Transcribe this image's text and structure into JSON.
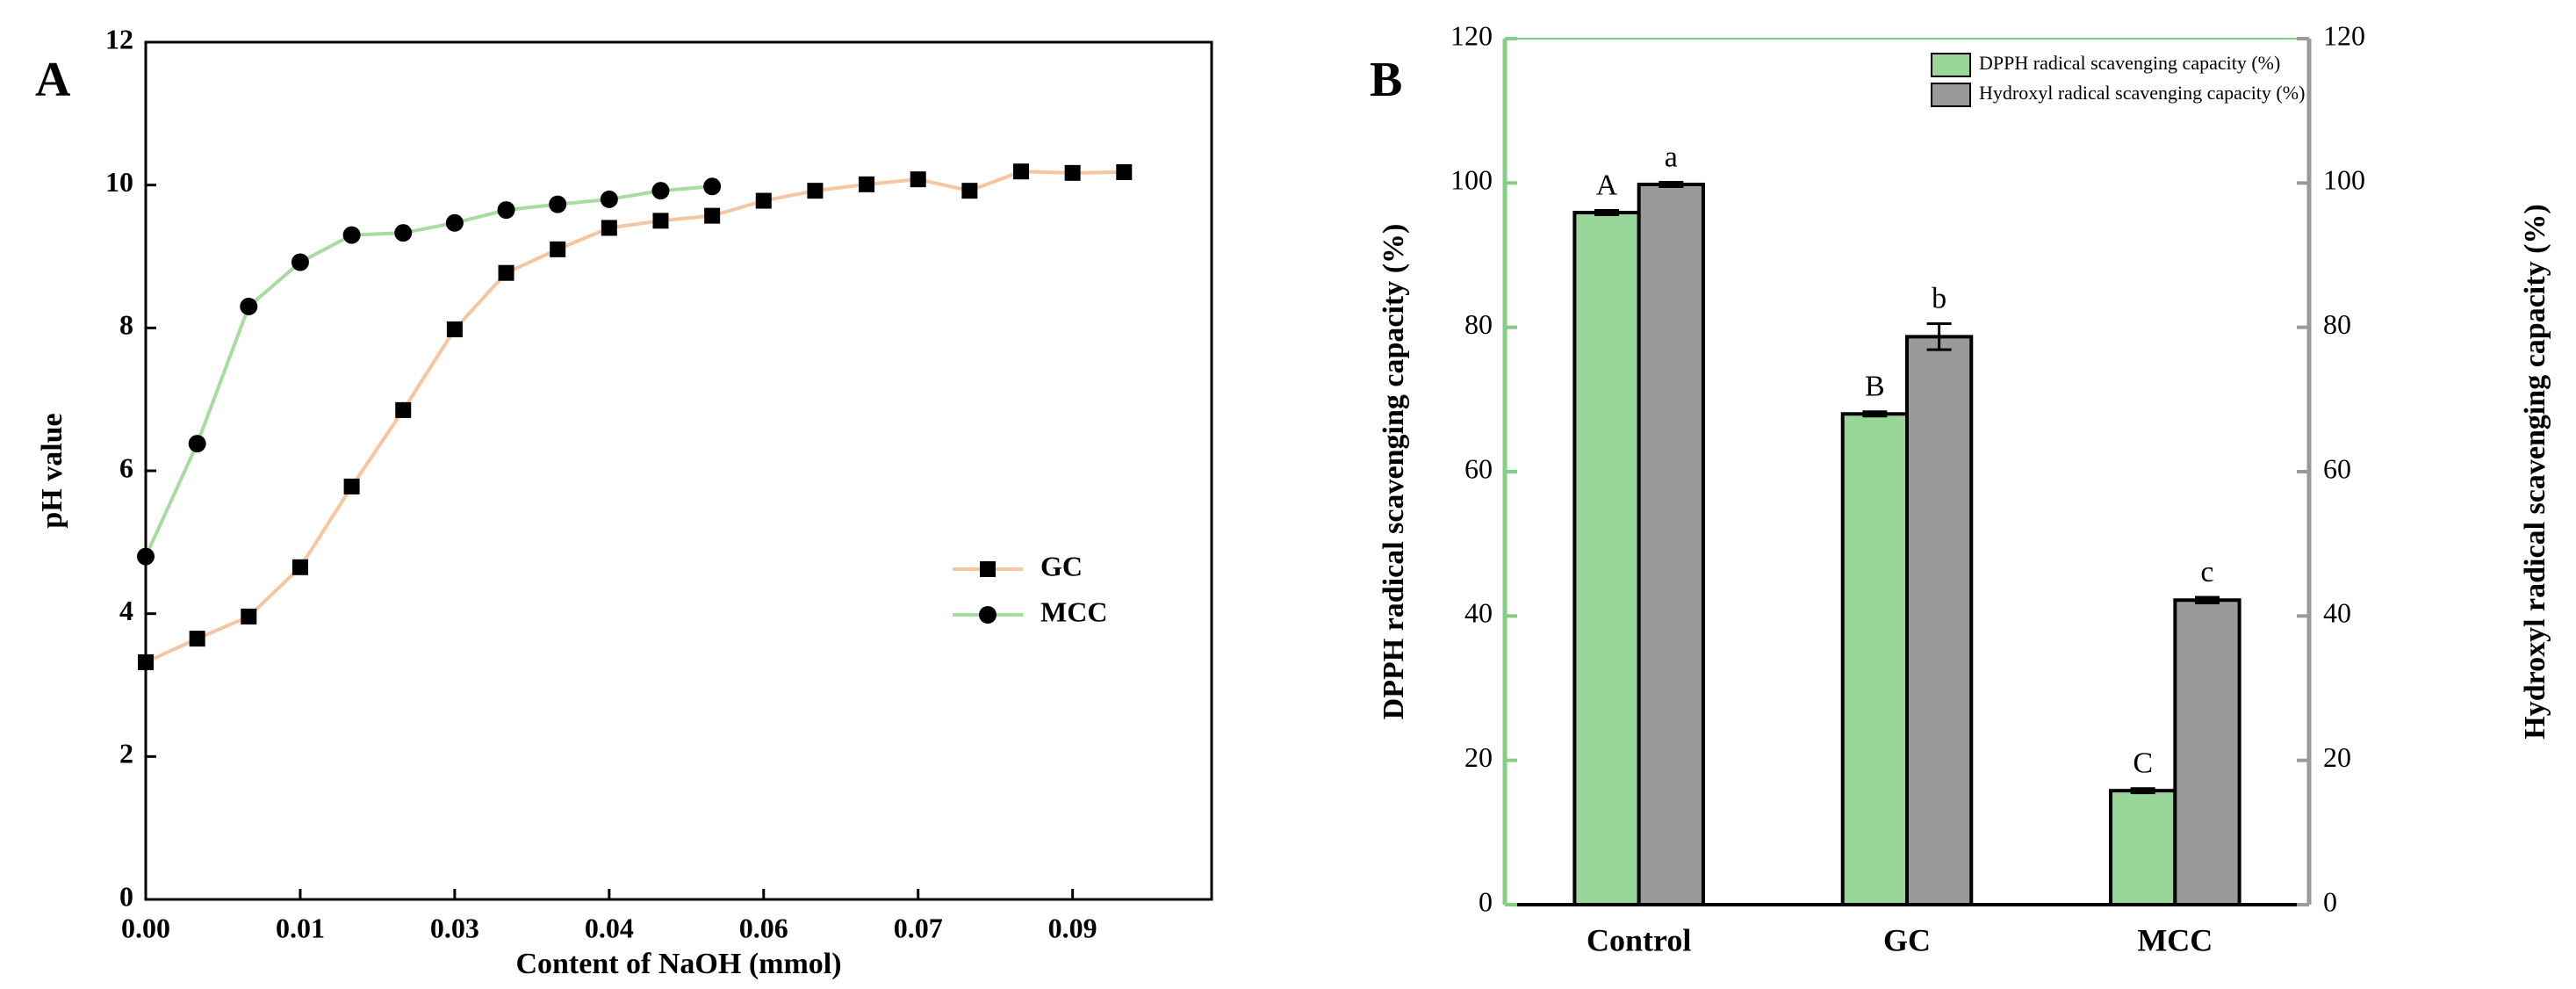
{
  "chart_data": [
    {
      "type": "line",
      "panel_label": "A",
      "xlabel": "Content of NaOH (mmol)",
      "ylabel": "pH value",
      "xlim": [
        0,
        0.1035
      ],
      "xticks": [
        {
          "value": 0,
          "label": "0.00"
        },
        {
          "value": 0.015,
          "label": "0.01"
        },
        0.03,
        {
          "value": 0.045,
          "label": "0.04"
        },
        0.06,
        {
          "value": 0.075,
          "label": "0.07"
        },
        0.09
      ],
      "ylim": [
        0,
        12
      ],
      "yticks": [
        0,
        2,
        4,
        6,
        8,
        10,
        12
      ],
      "legend": "right",
      "series": [
        {
          "name": "GC",
          "color": "#f7c59f",
          "marker": "square",
          "x": [
            0,
            0.005,
            0.01,
            0.015,
            0.02,
            0.025,
            0.03,
            0.035,
            0.04,
            0.045,
            0.05,
            0.055,
            0.06,
            0.065,
            0.07,
            0.075,
            0.08,
            0.085,
            0.09,
            0.095
          ],
          "values": [
            3.32,
            3.65,
            3.96,
            4.65,
            5.78,
            6.85,
            7.98,
            8.77,
            9.1,
            9.4,
            9.5,
            9.57,
            9.78,
            9.92,
            10.01,
            10.08,
            9.92,
            10.19,
            10.17,
            10.18
          ]
        },
        {
          "name": "MCC",
          "color": "#a8dba0",
          "marker": "circle",
          "x": [
            0,
            0.005,
            0.01,
            0.015,
            0.02,
            0.025,
            0.03,
            0.035,
            0.04,
            0.045,
            0.05,
            0.055
          ],
          "values": [
            4.8,
            6.38,
            8.3,
            8.92,
            9.3,
            9.33,
            9.47,
            9.65,
            9.73,
            9.8,
            9.92,
            9.98
          ]
        }
      ]
    },
    {
      "type": "bar",
      "panel_label": "B",
      "categories": [
        "Control",
        "GC",
        "MCC"
      ],
      "ylabel": "DPPH radical scavenging capacity (%)",
      "y2label": "Hydroxyl radical scavenging capacity (%)",
      "ylim": [
        0,
        120
      ],
      "yticks": [
        0,
        20,
        40,
        60,
        80,
        100,
        120
      ],
      "y2lim": [
        0,
        120
      ],
      "y2ticks": [
        0,
        20,
        40,
        60,
        80,
        100,
        120
      ],
      "legend": "upper right",
      "series": [
        {
          "name": "DPPH radical scavenging capacity (%)",
          "color": "#98d699",
          "values": [
            95.9,
            68.0,
            15.8
          ],
          "errors": [
            0.3,
            0.3,
            0.3
          ],
          "letters": [
            "A",
            "B",
            "C"
          ]
        },
        {
          "name": "Hydroxyl radical scavenging capacity (%)",
          "color": "#9a9a9a",
          "axis": "y2",
          "values": [
            99.8,
            78.7,
            42.2
          ],
          "errors": [
            0.3,
            1.8,
            0.4
          ],
          "letters": [
            "a",
            "b",
            "c"
          ]
        }
      ]
    }
  ]
}
